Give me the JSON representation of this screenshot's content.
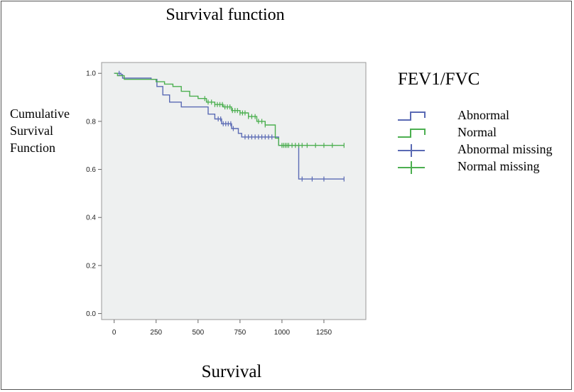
{
  "chart_data": {
    "type": "line",
    "title": "Survival function",
    "xlabel": "Survival",
    "ylabel": "Cumulative Survival Function",
    "xlim": [
      -75,
      1500
    ],
    "ylim": [
      -0.025,
      1.045
    ],
    "x_ticks": [
      "0",
      "250",
      "500",
      "750",
      "1000",
      "1250"
    ],
    "y_ticks": [
      "0.0",
      "0.2",
      "0.4",
      "0.6",
      "0.8",
      "1.0"
    ],
    "grid": false,
    "legend_title": "FEV1/FVC",
    "legend_position": "right",
    "series": [
      {
        "name": "Abnormal",
        "color": "#5a6ab4",
        "steps": [
          [
            0,
            1.0
          ],
          [
            40,
            0.995
          ],
          [
            50,
            0.98
          ],
          [
            220,
            0.975
          ],
          [
            255,
            0.945
          ],
          [
            290,
            0.91
          ],
          [
            330,
            0.88
          ],
          [
            400,
            0.86
          ],
          [
            560,
            0.83
          ],
          [
            600,
            0.81
          ],
          [
            640,
            0.79
          ],
          [
            700,
            0.77
          ],
          [
            740,
            0.75
          ],
          [
            760,
            0.735
          ],
          [
            980,
            0.7
          ],
          [
            1100,
            0.56
          ],
          [
            1370,
            0.56
          ]
        ]
      },
      {
        "name": "Normal",
        "color": "#4caf50",
        "steps": [
          [
            0,
            1.0
          ],
          [
            20,
            0.99
          ],
          [
            60,
            0.975
          ],
          [
            250,
            0.965
          ],
          [
            300,
            0.955
          ],
          [
            350,
            0.945
          ],
          [
            400,
            0.925
          ],
          [
            450,
            0.905
          ],
          [
            500,
            0.895
          ],
          [
            550,
            0.88
          ],
          [
            600,
            0.87
          ],
          [
            650,
            0.86
          ],
          [
            700,
            0.845
          ],
          [
            750,
            0.835
          ],
          [
            800,
            0.82
          ],
          [
            850,
            0.8
          ],
          [
            900,
            0.785
          ],
          [
            960,
            0.73
          ],
          [
            980,
            0.7
          ],
          [
            1370,
            0.7
          ]
        ]
      },
      {
        "name": "Abnormal missing",
        "color": "#5a6ab4",
        "censor_x": [
          30,
          620,
          635,
          650,
          665,
          680,
          695,
          710,
          780,
          800,
          820,
          840,
          860,
          880,
          900,
          920,
          940,
          1120,
          1180,
          1250,
          1370
        ]
      },
      {
        "name": "Normal missing",
        "color": "#4caf50",
        "censor_x": [
          540,
          560,
          580,
          600,
          615,
          630,
          645,
          660,
          675,
          690,
          705,
          720,
          735,
          750,
          765,
          780,
          800,
          820,
          840,
          860,
          880,
          900,
          1000,
          1010,
          1020,
          1030,
          1040,
          1060,
          1080,
          1100,
          1120,
          1150,
          1200,
          1250,
          1300,
          1370
        ]
      }
    ]
  }
}
